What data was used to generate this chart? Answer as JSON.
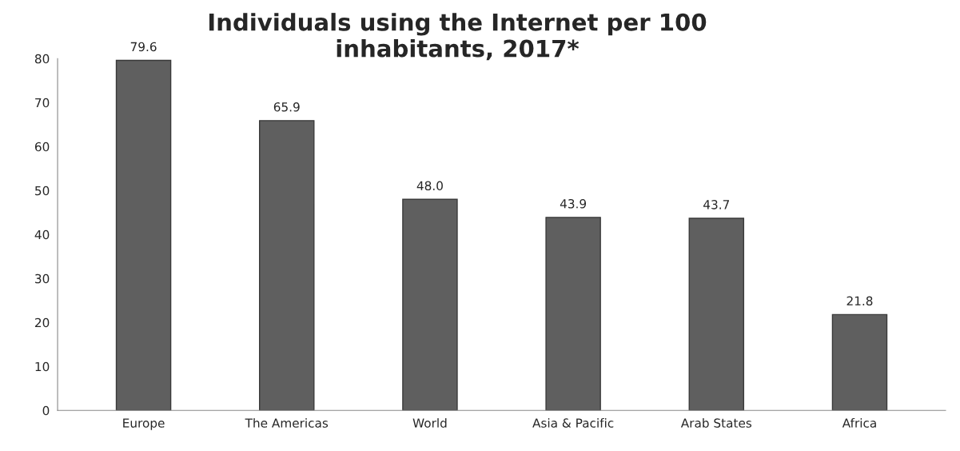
{
  "chart_data": {
    "type": "bar",
    "title": "Individuals using the Internet per 100\ninhabitants, 2017*",
    "categories": [
      "Europe",
      "The Americas",
      "World",
      "Asia & Pacific",
      "Arab States",
      "Africa"
    ],
    "values": [
      79.6,
      65.9,
      48.0,
      43.9,
      43.7,
      21.8
    ],
    "value_labels": [
      "79.6",
      "65.9",
      "48.0",
      "43.9",
      "43.7",
      "21.8"
    ],
    "color": "#5f5f5f",
    "ylim": [
      0,
      80
    ],
    "yticks": [
      0,
      10,
      20,
      30,
      40,
      50,
      60,
      70,
      80
    ],
    "grid": false
  }
}
